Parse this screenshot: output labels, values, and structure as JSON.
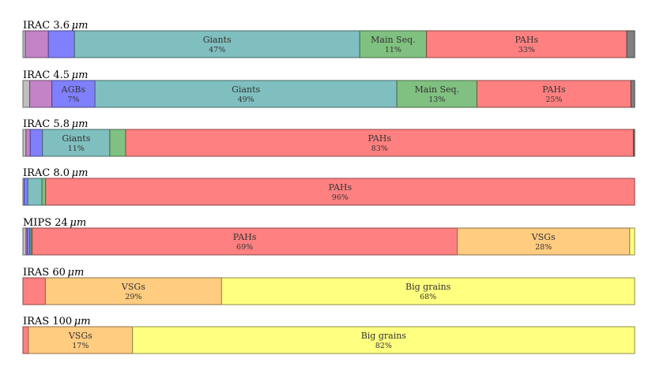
{
  "chart_data": {
    "type": "stacked-bar",
    "orientation": "horizontal",
    "title": "",
    "xlabel": "",
    "ylabel": "",
    "xlim": [
      0,
      100
    ],
    "components": [
      {
        "key": "stars_gray",
        "color": "#bfbfbf"
      },
      {
        "key": "stars_purple",
        "color": "#c383c6"
      },
      {
        "key": "AGBs",
        "label": "AGBs",
        "color": "#8080ff"
      },
      {
        "key": "Giants",
        "label": "Giants",
        "color": "#80bfbf"
      },
      {
        "key": "Main Seq.",
        "label": "Main Seq.",
        "color": "#80c080"
      },
      {
        "key": "PAHs",
        "label": "PAHs",
        "color": "#ff8080"
      },
      {
        "key": "VSGs",
        "label": "VSGs",
        "color": "#ffcc80"
      },
      {
        "key": "Big grains",
        "label": "Big grains",
        "color": "#ffff80"
      },
      {
        "key": "other_dark",
        "color": "#808080"
      }
    ],
    "bands": [
      {
        "title": "IRAC 3.6",
        "unit": "μm",
        "segments": [
          {
            "key": "stars_gray",
            "value": 0.4
          },
          {
            "key": "stars_purple",
            "value": 3.8
          },
          {
            "key": "AGBs",
            "value": 4.3
          },
          {
            "key": "Giants",
            "value": 47,
            "label": "Giants",
            "pct": "47%"
          },
          {
            "key": "Main Seq.",
            "value": 11,
            "label": "Main Seq.",
            "pct": "11%"
          },
          {
            "key": "PAHs",
            "value": 33,
            "label": "PAHs",
            "pct": "33%"
          },
          {
            "key": "other_dark",
            "value": 1.3
          }
        ]
      },
      {
        "title": "IRAC 4.5",
        "unit": "μm",
        "segments": [
          {
            "key": "stars_gray",
            "value": 1.1
          },
          {
            "key": "stars_purple",
            "value": 3.6
          },
          {
            "key": "AGBs",
            "value": 7,
            "label": "AGBs",
            "pct": "7%"
          },
          {
            "key": "Giants",
            "value": 49,
            "label": "Giants",
            "pct": "49%"
          },
          {
            "key": "Main Seq.",
            "value": 13,
            "label": "Main Seq.",
            "pct": "13%"
          },
          {
            "key": "PAHs",
            "value": 25,
            "label": "PAHs",
            "pct": "25%"
          },
          {
            "key": "other_dark",
            "value": 0.6
          }
        ]
      },
      {
        "title": "IRAC 5.8",
        "unit": "μm",
        "segments": [
          {
            "key": "stars_gray",
            "value": 0.5
          },
          {
            "key": "stars_purple",
            "value": 0.7
          },
          {
            "key": "AGBs",
            "value": 2.0
          },
          {
            "key": "Giants",
            "value": 11,
            "label": "Giants",
            "pct": "11%"
          },
          {
            "key": "Main Seq.",
            "value": 2.6
          },
          {
            "key": "PAHs",
            "value": 83,
            "label": "PAHs",
            "pct": "83%"
          },
          {
            "key": "other_dark",
            "value": 0.2
          }
        ]
      },
      {
        "title": "IRAC 8.0",
        "unit": "μm",
        "segments": [
          {
            "key": "stars_gray",
            "value": 0.2
          },
          {
            "key": "AGBs",
            "value": 0.6
          },
          {
            "key": "Giants",
            "value": 2.3
          },
          {
            "key": "Main Seq.",
            "value": 0.6
          },
          {
            "key": "PAHs",
            "value": 96,
            "label": "PAHs",
            "pct": "96%"
          }
        ]
      },
      {
        "title": "MIPS 24",
        "unit": "μm",
        "segments": [
          {
            "key": "stars_gray",
            "value": 0.5
          },
          {
            "key": "stars_purple",
            "value": 0.2
          },
          {
            "key": "AGBs",
            "value": 0.4
          },
          {
            "key": "Giants",
            "value": 0.2
          },
          {
            "key": "Main Seq.",
            "value": 0.2
          },
          {
            "key": "PAHs",
            "value": 69,
            "label": "PAHs",
            "pct": "69%"
          },
          {
            "key": "VSGs",
            "value": 28,
            "label": "VSGs",
            "pct": "28%"
          },
          {
            "key": "Big grains",
            "value": 0.8
          }
        ]
      },
      {
        "title": "IRAS 60",
        "unit": "μm",
        "segments": [
          {
            "key": "PAHs",
            "value": 3.7
          },
          {
            "key": "VSGs",
            "value": 29,
            "label": "VSGs",
            "pct": "29%"
          },
          {
            "key": "Big grains",
            "value": 68,
            "label": "Big grains",
            "pct": "68%"
          }
        ]
      },
      {
        "title": "IRAS 100",
        "unit": "μm",
        "segments": [
          {
            "key": "PAHs",
            "value": 0.9
          },
          {
            "key": "VSGs",
            "value": 17,
            "label": "VSGs",
            "pct": "17%"
          },
          {
            "key": "Big grains",
            "value": 82,
            "label": "Big grains",
            "pct": "82%"
          }
        ]
      }
    ]
  }
}
